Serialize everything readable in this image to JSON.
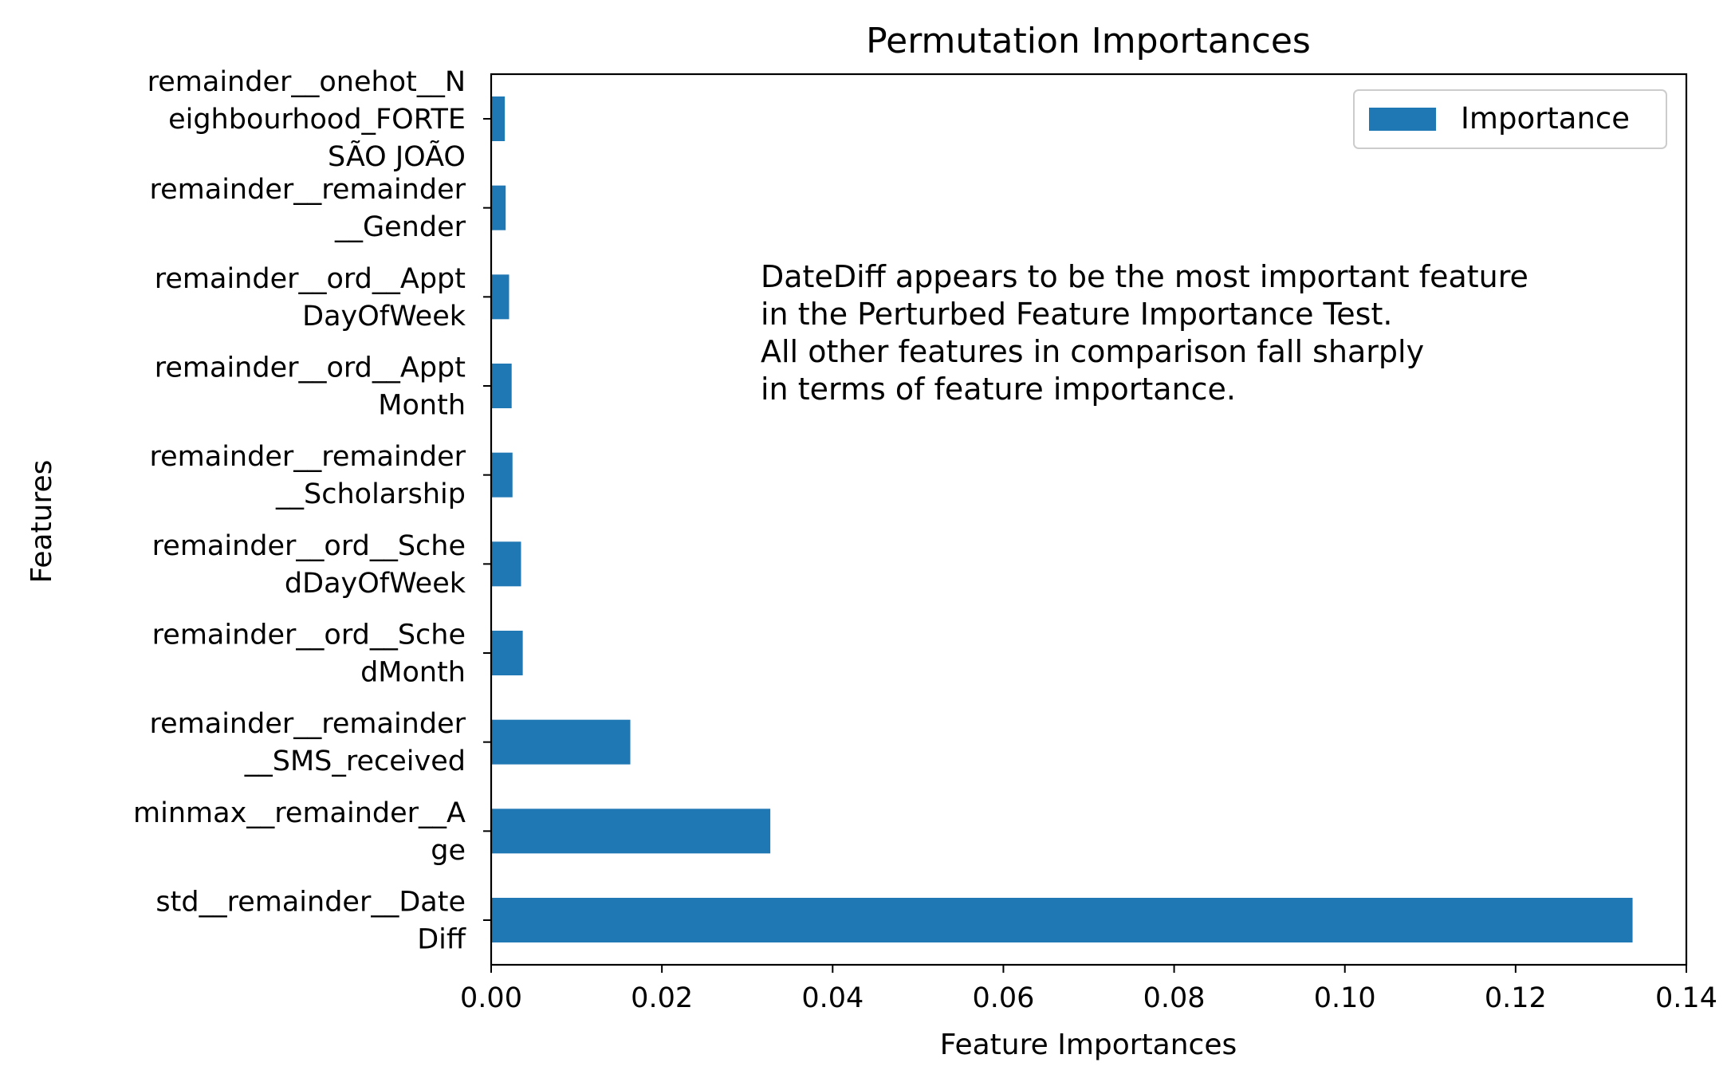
{
  "chart_data": {
    "type": "bar",
    "orientation": "horizontal",
    "title": "Permutation Importances",
    "xlabel": "Feature Importances",
    "ylabel": "Features",
    "xlim": [
      0,
      0.14
    ],
    "xticks": [
      0,
      0.02,
      0.04,
      0.06,
      0.08,
      0.1,
      0.12,
      0.14
    ],
    "xtick_labels": [
      "0.00",
      "0.02",
      "0.04",
      "0.06",
      "0.08",
      "0.10",
      "0.12",
      "0.14"
    ],
    "grid": false,
    "legend": {
      "placement": "top-right",
      "entries": [
        "Importance"
      ]
    },
    "colors": {
      "bar": "#1f77b4"
    },
    "categories": [
      [
        "std__remainder__Date",
        "Diff"
      ],
      [
        "minmax__remainder__A",
        "ge"
      ],
      [
        "remainder__remainder",
        "__SMS_received"
      ],
      [
        "remainder__ord__Sche",
        "dMonth"
      ],
      [
        "remainder__ord__Sche",
        "dDayOfWeek"
      ],
      [
        "remainder__remainder",
        "__Scholarship"
      ],
      [
        "remainder__ord__Appt",
        "Month"
      ],
      [
        "remainder__ord__Appt",
        "DayOfWeek"
      ],
      [
        "remainder__remainder",
        "__Gender"
      ],
      [
        "remainder__onehot__N",
        "eighbourhood_FORTE",
        "SÃO JOÃO"
      ]
    ],
    "series": [
      {
        "name": "Importance",
        "values": [
          0.1337,
          0.0327,
          0.0163,
          0.0037,
          0.0035,
          0.0025,
          0.0024,
          0.0021,
          0.0017,
          0.0016
        ]
      }
    ],
    "annotation": [
      "DateDiff appears to be the most important feature",
      "in the Perturbed Feature Importance Test.",
      "All other features in comparison fall sharply",
      "in terms of feature importance."
    ]
  }
}
